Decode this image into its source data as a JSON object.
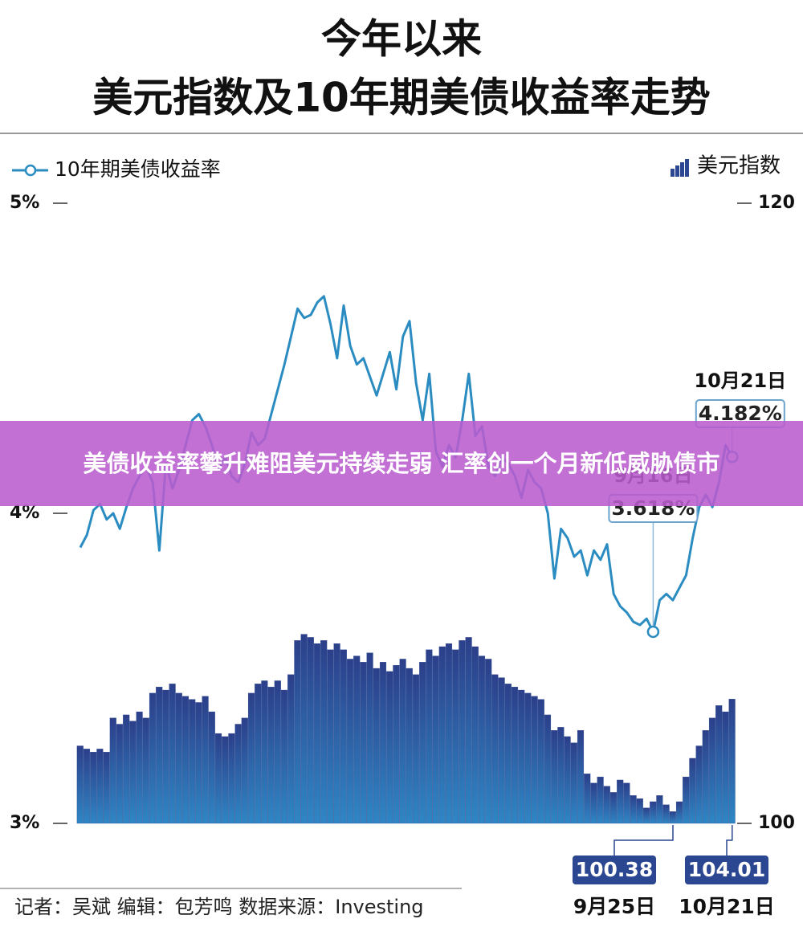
{
  "banner": "美债收益率攀升难阻美元持续走弱 汇率创一个月新低威胁债市",
  "chart_data": {
    "type": "combo",
    "title": "今年以来",
    "subtitle": "美元指数及10年期美债收益率走势",
    "source": "记者：吴斌  编辑：包芳鸣  数据来源：Investing",
    "categories": [
      null,
      null,
      null,
      null,
      null,
      null,
      null,
      null,
      null,
      null,
      null,
      null,
      null,
      null,
      null,
      null,
      null,
      null,
      null,
      null,
      null,
      null,
      null,
      null,
      null,
      null,
      null,
      null,
      null,
      null,
      null,
      null,
      null,
      null,
      null,
      null,
      null,
      null,
      null,
      null,
      null,
      null,
      null,
      null,
      null,
      null,
      null,
      null,
      null,
      null,
      null,
      null,
      null,
      null,
      null,
      null,
      null,
      null,
      null,
      null,
      null,
      null,
      null,
      null,
      null,
      null,
      null,
      null,
      null,
      null,
      null,
      null,
      null,
      null,
      null,
      null,
      null,
      null,
      null,
      null,
      null,
      null,
      null,
      null,
      null,
      null,
      null,
      "9月16日",
      null,
      null,
      "9月25日",
      null,
      null,
      null,
      null,
      null,
      null,
      null,
      null,
      "10月21日"
    ],
    "ylim": [
      3,
      5
    ],
    "yticks": [
      {
        "value": 3,
        "label": "3%"
      },
      {
        "value": 4,
        "label": "4%"
      },
      {
        "value": 5,
        "label": "5%"
      }
    ],
    "y2lim": [
      100,
      120
    ],
    "y2ticks": [
      100,
      120
    ],
    "grid": false,
    "series": [
      {
        "name": "10年期美债收益率",
        "type": "line",
        "color": "#2b8cc2",
        "values": [
          3.89,
          3.93,
          4.01,
          4.03,
          3.98,
          4.0,
          3.95,
          4.02,
          4.08,
          4.12,
          4.15,
          4.1,
          3.88,
          4.16,
          4.08,
          4.14,
          4.22,
          4.3,
          4.32,
          4.28,
          4.22,
          4.14,
          4.18,
          4.12,
          4.1,
          4.16,
          4.26,
          4.22,
          4.24,
          4.32,
          4.4,
          4.48,
          4.57,
          4.66,
          4.63,
          4.64,
          4.68,
          4.7,
          4.61,
          4.5,
          4.67,
          4.54,
          4.48,
          4.5,
          4.44,
          4.38,
          4.45,
          4.52,
          4.4,
          4.57,
          4.62,
          4.42,
          4.3,
          4.45,
          4.2,
          4.15,
          4.22,
          4.18,
          4.3,
          4.45,
          4.25,
          4.28,
          4.15,
          4.12,
          4.18,
          4.16,
          4.12,
          4.05,
          4.14,
          4.1,
          4.08,
          4.0,
          3.79,
          3.95,
          3.92,
          3.86,
          3.88,
          3.8,
          3.88,
          3.85,
          3.9,
          3.74,
          3.7,
          3.68,
          3.65,
          3.64,
          3.66,
          3.618,
          3.72,
          3.74,
          3.72,
          3.76,
          3.8,
          3.92,
          4.02,
          4.06,
          4.02,
          4.1,
          4.22,
          4.182
        ],
        "value_labels": [
          null,
          null,
          null,
          null,
          null,
          null,
          null,
          null,
          null,
          null,
          null,
          null,
          null,
          null,
          null,
          null,
          null,
          null,
          null,
          null,
          null,
          null,
          null,
          null,
          null,
          null,
          null,
          null,
          null,
          null,
          null,
          null,
          null,
          null,
          null,
          null,
          null,
          null,
          null,
          null,
          null,
          null,
          null,
          null,
          null,
          null,
          null,
          null,
          null,
          null,
          null,
          null,
          null,
          null,
          null,
          null,
          null,
          null,
          null,
          null,
          null,
          null,
          null,
          null,
          null,
          null,
          null,
          null,
          null,
          null,
          null,
          null,
          null,
          null,
          null,
          null,
          null,
          null,
          null,
          null,
          null,
          null,
          null,
          null,
          null,
          null,
          null,
          "3.618%",
          null,
          null,
          null,
          null,
          null,
          null,
          null,
          null,
          null,
          null,
          null,
          "4.182%"
        ]
      },
      {
        "name": "美元指数",
        "type": "bar",
        "axis": "y2",
        "color": "#2c4791",
        "values": [
          102.5,
          102.4,
          102.3,
          102.4,
          102.3,
          103.4,
          103.2,
          103.5,
          103.3,
          103.6,
          103.4,
          104.2,
          104.4,
          104.3,
          104.5,
          104.2,
          104.1,
          104.0,
          103.9,
          104.1,
          103.6,
          102.9,
          102.8,
          102.9,
          103.2,
          103.4,
          104.2,
          104.5,
          104.6,
          104.4,
          104.6,
          104.3,
          104.8,
          105.9,
          106.1,
          106.0,
          105.8,
          105.9,
          105.6,
          105.8,
          105.6,
          105.3,
          105.4,
          105.2,
          105.5,
          105.0,
          105.2,
          104.9,
          105.1,
          105.3,
          105.0,
          104.8,
          105.2,
          105.6,
          105.4,
          105.7,
          105.8,
          105.6,
          105.9,
          106.0,
          105.7,
          105.4,
          105.3,
          104.8,
          104.7,
          104.5,
          104.4,
          104.3,
          104.2,
          104.1,
          104.0,
          103.5,
          103.0,
          103.1,
          102.8,
          102.6,
          103.0,
          101.6,
          101.3,
          101.5,
          101.2,
          101.0,
          101.4,
          101.3,
          100.9,
          100.8,
          100.5,
          100.7,
          100.9,
          100.6,
          100.38,
          100.7,
          101.5,
          102.1,
          102.5,
          103.0,
          103.4,
          103.8,
          103.6,
          104.01
        ],
        "value_labels": [
          null,
          null,
          null,
          null,
          null,
          null,
          null,
          null,
          null,
          null,
          null,
          null,
          null,
          null,
          null,
          null,
          null,
          null,
          null,
          null,
          null,
          null,
          null,
          null,
          null,
          null,
          null,
          null,
          null,
          null,
          null,
          null,
          null,
          null,
          null,
          null,
          null,
          null,
          null,
          null,
          null,
          null,
          null,
          null,
          null,
          null,
          null,
          null,
          null,
          null,
          null,
          null,
          null,
          null,
          null,
          null,
          null,
          null,
          null,
          null,
          null,
          null,
          null,
          null,
          null,
          null,
          null,
          null,
          null,
          null,
          null,
          null,
          null,
          null,
          null,
          null,
          null,
          null,
          null,
          null,
          null,
          null,
          null,
          null,
          null,
          null,
          null,
          null,
          null,
          null,
          "100.38",
          null,
          null,
          null,
          null,
          null,
          null,
          null,
          null,
          "104.01"
        ]
      }
    ]
  }
}
